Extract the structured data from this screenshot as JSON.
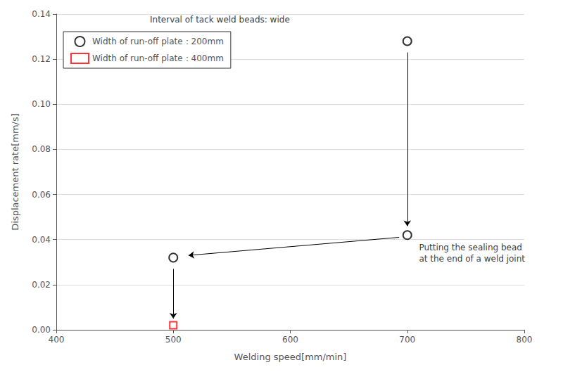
{
  "chart_data": {
    "type": "scatter",
    "xlabel": "Welding speed[mm/min]",
    "ylabel": "Displacement rate[mm/s]",
    "xlim": [
      400,
      800
    ],
    "ylim": [
      0,
      0.14
    ],
    "xticks": [
      400,
      500,
      600,
      700,
      800
    ],
    "yticks": [
      {
        "value": 0,
        "label": "0.00"
      },
      0.02,
      0.04,
      0.06,
      0.08,
      {
        "value": 0.1,
        "label": "0.10"
      },
      0.12,
      0.14
    ],
    "grid": true,
    "legend": "upper left",
    "series": [
      {
        "name": "Width of run-off plate：200mm",
        "color": "#000000",
        "marker": "circle",
        "x": [
          500,
          700,
          700
        ],
        "values": [
          0.032,
          0.128,
          0.042
        ]
      },
      {
        "name": "Width of run-off plate：400mm",
        "color": "#ff0000",
        "marker": "square",
        "x": [
          500
        ],
        "values": [
          0.002
        ]
      }
    ],
    "annotations": [
      {
        "text": "Interval of tack weld beads: wide",
        "x": 480,
        "y": 0.1375
      },
      {
        "text": "Putting the sealing bead\nat the end of a weld joint",
        "x": 710,
        "y": 0.034
      }
    ],
    "arrows": [
      {
        "x_start": 700,
        "y_start": 0.123,
        "x_end": 700,
        "y_end": 0.046
      },
      {
        "x_start": 500,
        "y_start": 0.027,
        "x_end": 500,
        "y_end": 0.005
      },
      {
        "x_start": 693,
        "y_start": 0.041,
        "x_end": 513,
        "y_end": 0.033
      }
    ]
  }
}
